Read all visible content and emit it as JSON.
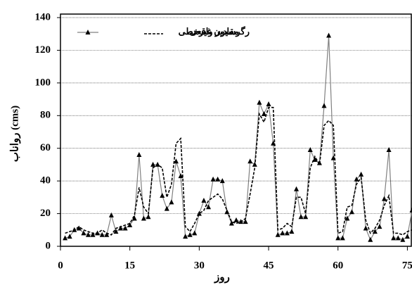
{
  "chart_data": {
    "type": "line",
    "y_label": "رواناب (cms)",
    "x_label": "روز",
    "x": [
      1,
      2,
      3,
      4,
      5,
      6,
      7,
      8,
      9,
      10,
      11,
      12,
      13,
      14,
      15,
      16,
      17,
      18,
      19,
      20,
      21,
      22,
      23,
      24,
      25,
      26,
      27,
      28,
      29,
      30,
      31,
      32,
      33,
      34,
      35,
      36,
      37,
      38,
      39,
      40,
      41,
      42,
      43,
      44,
      45,
      46,
      47,
      48,
      49,
      50,
      51,
      52,
      53,
      54,
      55,
      56,
      57,
      58,
      59,
      60,
      61,
      62,
      63,
      64,
      65,
      66,
      67,
      68,
      69,
      70,
      71,
      72,
      73,
      74,
      75,
      76
    ],
    "series": [
      {
        "name": "مقادیر واقعی",
        "color": "#808080",
        "marker_color": "#000000",
        "values": [
          5,
          6,
          10,
          11,
          8,
          7,
          7,
          8,
          7,
          7,
          19,
          9,
          11,
          11,
          13,
          17,
          56,
          17,
          18,
          50,
          50,
          31,
          23,
          27,
          52,
          43,
          6,
          7,
          8,
          20,
          28,
          24,
          41,
          41,
          40,
          21,
          14,
          16,
          15,
          15,
          52,
          50,
          88,
          81,
          87,
          63,
          7,
          8,
          8,
          9,
          35,
          18,
          18,
          59,
          53,
          51,
          86,
          129,
          54,
          5,
          5,
          17,
          21,
          41,
          44,
          11,
          4,
          9,
          12,
          29,
          59,
          5,
          5,
          4,
          6,
          22
        ]
      },
      {
        "name": "رگرسیون غیرخطی",
        "color": "#000000",
        "values": [
          8,
          9,
          10,
          12,
          10,
          9,
          8,
          8,
          10,
          8,
          7,
          11,
          12,
          13,
          14,
          19,
          36,
          24,
          20,
          48,
          50,
          48,
          30,
          38,
          63,
          66,
          12,
          9,
          14,
          20,
          22,
          28,
          30,
          32,
          29,
          22,
          15,
          14,
          15,
          17,
          32,
          48,
          81,
          76,
          85,
          85,
          10,
          11,
          14,
          12,
          30,
          30,
          20,
          48,
          55,
          50,
          74,
          77,
          74,
          8,
          9,
          24,
          25,
          38,
          42,
          16,
          8,
          11,
          16,
          25,
          31,
          8,
          8,
          7,
          9,
          10
        ]
      }
    ],
    "xlim": [
      0,
      76
    ],
    "xticks": [
      0,
      15,
      30,
      45,
      60,
      75
    ],
    "ylim": [
      0,
      140
    ],
    "yticks": [
      0,
      20,
      40,
      60,
      80,
      100,
      120,
      140
    ],
    "grid": true,
    "legend": "top-left"
  }
}
